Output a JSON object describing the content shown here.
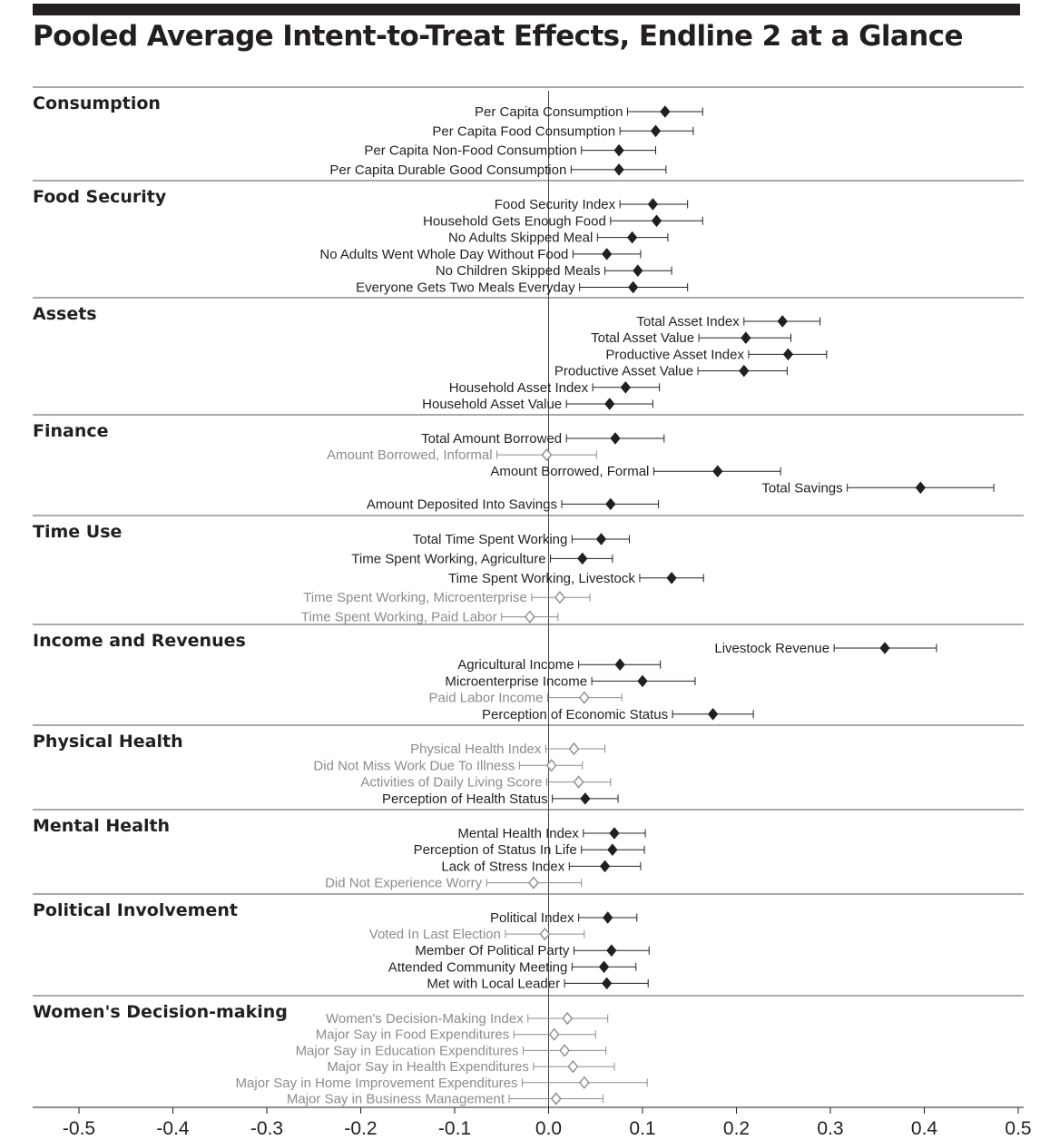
{
  "title": "Pooled Average Intent-to-Treat Effects, Endline 2 at a Glance",
  "colors": {
    "significant": "#231f20",
    "not_significant": "#8c8c8c",
    "rule": "#231f20"
  },
  "chart_data": {
    "type": "scatter",
    "subtype": "forest-plot",
    "title": "Pooled Average Intent-to-Treat Effects, Endline 2 at a Glance",
    "xlim": [
      -0.5,
      0.5
    ],
    "xticks": [
      "-0.5",
      "-0.4",
      "-0.3",
      "-0.2",
      "-0.1",
      "0.0",
      "0.1",
      "0.2",
      "0.3",
      "0.4",
      "0.5"
    ],
    "xtick_values": [
      -0.5,
      -0.4,
      -0.3,
      -0.2,
      -0.1,
      0.0,
      0.1,
      0.2,
      0.3,
      0.4,
      0.5
    ],
    "reference_line": 0,
    "marker": "diamond",
    "sections": [
      {
        "name": "Consumption",
        "rows": [
          {
            "label": "Per Capita Consumption",
            "est": 0.124,
            "lo": 0.084,
            "hi": 0.164,
            "sig": true
          },
          {
            "label": "Per Capita Food Consumption",
            "est": 0.114,
            "lo": 0.076,
            "hi": 0.154,
            "sig": true
          },
          {
            "label": "Per Capita Non-Food Consumption",
            "est": 0.075,
            "lo": 0.035,
            "hi": 0.114,
            "sig": true
          },
          {
            "label": "Per Capita Durable Good Consumption",
            "est": 0.075,
            "lo": 0.024,
            "hi": 0.125,
            "sig": true
          }
        ]
      },
      {
        "name": "Food Security",
        "rows": [
          {
            "label": "Food Security Index",
            "est": 0.111,
            "lo": 0.076,
            "hi": 0.148,
            "sig": true
          },
          {
            "label": "Household Gets Enough Food",
            "est": 0.115,
            "lo": 0.066,
            "hi": 0.164,
            "sig": true
          },
          {
            "label": "No Adults Skipped Meal",
            "est": 0.089,
            "lo": 0.052,
            "hi": 0.127,
            "sig": true
          },
          {
            "label": "No Adults Went Whole Day Without Food",
            "est": 0.062,
            "lo": 0.026,
            "hi": 0.098,
            "sig": true
          },
          {
            "label": "No Children Skipped Meals",
            "est": 0.095,
            "lo": 0.06,
            "hi": 0.131,
            "sig": true
          },
          {
            "label": "Everyone Gets Two Meals Everyday",
            "est": 0.09,
            "lo": 0.033,
            "hi": 0.148,
            "sig": true
          }
        ]
      },
      {
        "name": "Assets",
        "rows": [
          {
            "label": "Total Asset Index",
            "est": 0.249,
            "lo": 0.208,
            "hi": 0.289,
            "sig": true
          },
          {
            "label": "Total Asset Value",
            "est": 0.21,
            "lo": 0.16,
            "hi": 0.258,
            "sig": true
          },
          {
            "label": "Productive Asset Index",
            "est": 0.255,
            "lo": 0.213,
            "hi": 0.296,
            "sig": true
          },
          {
            "label": "Productive Asset Value",
            "est": 0.208,
            "lo": 0.159,
            "hi": 0.254,
            "sig": true
          },
          {
            "label": "Household Asset Index",
            "est": 0.082,
            "lo": 0.047,
            "hi": 0.118,
            "sig": true
          },
          {
            "label": "Household Asset Value",
            "est": 0.065,
            "lo": 0.019,
            "hi": 0.111,
            "sig": true
          }
        ]
      },
      {
        "name": "Finance",
        "rows": [
          {
            "label": "Total Amount Borrowed",
            "est": 0.071,
            "lo": 0.019,
            "hi": 0.123,
            "sig": true
          },
          {
            "label": "Amount Borrowed, Informal",
            "est": -0.002,
            "lo": -0.055,
            "hi": 0.051,
            "sig": false
          },
          {
            "label": "Amount Borrowed, Formal",
            "est": 0.18,
            "lo": 0.112,
            "hi": 0.247,
            "sig": true
          },
          {
            "label": "Total Savings",
            "est": 0.396,
            "lo": 0.318,
            "hi": 0.474,
            "sig": true
          },
          {
            "label": "Amount Deposited Into Savings",
            "est": 0.066,
            "lo": 0.014,
            "hi": 0.117,
            "sig": true
          }
        ]
      },
      {
        "name": "Time Use",
        "rows": [
          {
            "label": "Total Time Spent Working",
            "est": 0.056,
            "lo": 0.025,
            "hi": 0.086,
            "sig": true
          },
          {
            "label": "Time Spent Working, Agriculture",
            "est": 0.036,
            "lo": 0.002,
            "hi": 0.068,
            "sig": true
          },
          {
            "label": "Time Spent Working, Livestock",
            "est": 0.131,
            "lo": 0.097,
            "hi": 0.165,
            "sig": true
          },
          {
            "label": "Time Spent Working, Microenterprise",
            "est": 0.012,
            "lo": -0.018,
            "hi": 0.044,
            "sig": false
          },
          {
            "label": "Time Spent Working, Paid Labor",
            "est": -0.02,
            "lo": -0.05,
            "hi": 0.01,
            "sig": false
          }
        ]
      },
      {
        "name": "Income and Revenues",
        "rows": [
          {
            "label": "Livestock Revenue",
            "est": 0.358,
            "lo": 0.304,
            "hi": 0.413,
            "sig": true
          },
          {
            "label": "Agricultural Income",
            "est": 0.076,
            "lo": 0.032,
            "hi": 0.119,
            "sig": true
          },
          {
            "label": "Microenterprise Income",
            "est": 0.1,
            "lo": 0.046,
            "hi": 0.156,
            "sig": true
          },
          {
            "label": "Paid Labor Income",
            "est": 0.038,
            "lo": -0.001,
            "hi": 0.078,
            "sig": false
          },
          {
            "label": "Perception of Economic Status",
            "est": 0.175,
            "lo": 0.132,
            "hi": 0.218,
            "sig": true
          }
        ]
      },
      {
        "name": "Physical Health",
        "rows": [
          {
            "label": "Physical Health Index",
            "est": 0.027,
            "lo": -0.003,
            "hi": 0.06,
            "sig": false
          },
          {
            "label": "Did Not Miss Work Due To Illness",
            "est": 0.003,
            "lo": -0.031,
            "hi": 0.036,
            "sig": false
          },
          {
            "label": "Activities of Daily Living Score",
            "est": 0.032,
            "lo": -0.002,
            "hi": 0.066,
            "sig": false
          },
          {
            "label": "Perception of Health Status",
            "est": 0.039,
            "lo": 0.004,
            "hi": 0.074,
            "sig": true
          }
        ]
      },
      {
        "name": "Mental Health",
        "rows": [
          {
            "label": "Mental Health Index",
            "est": 0.07,
            "lo": 0.037,
            "hi": 0.103,
            "sig": true
          },
          {
            "label": "Perception of Status In Life",
            "est": 0.068,
            "lo": 0.035,
            "hi": 0.102,
            "sig": true
          },
          {
            "label": "Lack of Stress Index",
            "est": 0.06,
            "lo": 0.022,
            "hi": 0.098,
            "sig": true
          },
          {
            "label": "Did Not Experience Worry",
            "est": -0.016,
            "lo": -0.066,
            "hi": 0.035,
            "sig": false
          }
        ]
      },
      {
        "name": "Political Involvement",
        "rows": [
          {
            "label": "Political Index",
            "est": 0.063,
            "lo": 0.032,
            "hi": 0.094,
            "sig": true
          },
          {
            "label": "Voted In Last Election",
            "est": -0.004,
            "lo": -0.046,
            "hi": 0.038,
            "sig": false
          },
          {
            "label": "Member Of Political Party",
            "est": 0.067,
            "lo": 0.027,
            "hi": 0.107,
            "sig": true
          },
          {
            "label": "Attended Community Meeting",
            "est": 0.059,
            "lo": 0.025,
            "hi": 0.093,
            "sig": true
          },
          {
            "label": "Met with Local Leader",
            "est": 0.062,
            "lo": 0.017,
            "hi": 0.106,
            "sig": true
          }
        ]
      },
      {
        "name": "Women's Decision-making",
        "rows": [
          {
            "label": "Women's Decision-Making Index",
            "est": 0.02,
            "lo": -0.022,
            "hi": 0.063,
            "sig": false
          },
          {
            "label": "Major Say in Food Expenditures",
            "est": 0.006,
            "lo": -0.037,
            "hi": 0.05,
            "sig": false
          },
          {
            "label": "Major Say in Education Expenditures",
            "est": 0.017,
            "lo": -0.027,
            "hi": 0.061,
            "sig": false
          },
          {
            "label": "Major Say in Health Expenditures",
            "est": 0.026,
            "lo": -0.016,
            "hi": 0.07,
            "sig": false
          },
          {
            "label": "Major Say in Home Improvement Expenditures",
            "est": 0.038,
            "lo": -0.028,
            "hi": 0.105,
            "sig": false
          },
          {
            "label": "Major Say in Business Management",
            "est": 0.008,
            "lo": -0.042,
            "hi": 0.058,
            "sig": false
          }
        ]
      }
    ]
  }
}
